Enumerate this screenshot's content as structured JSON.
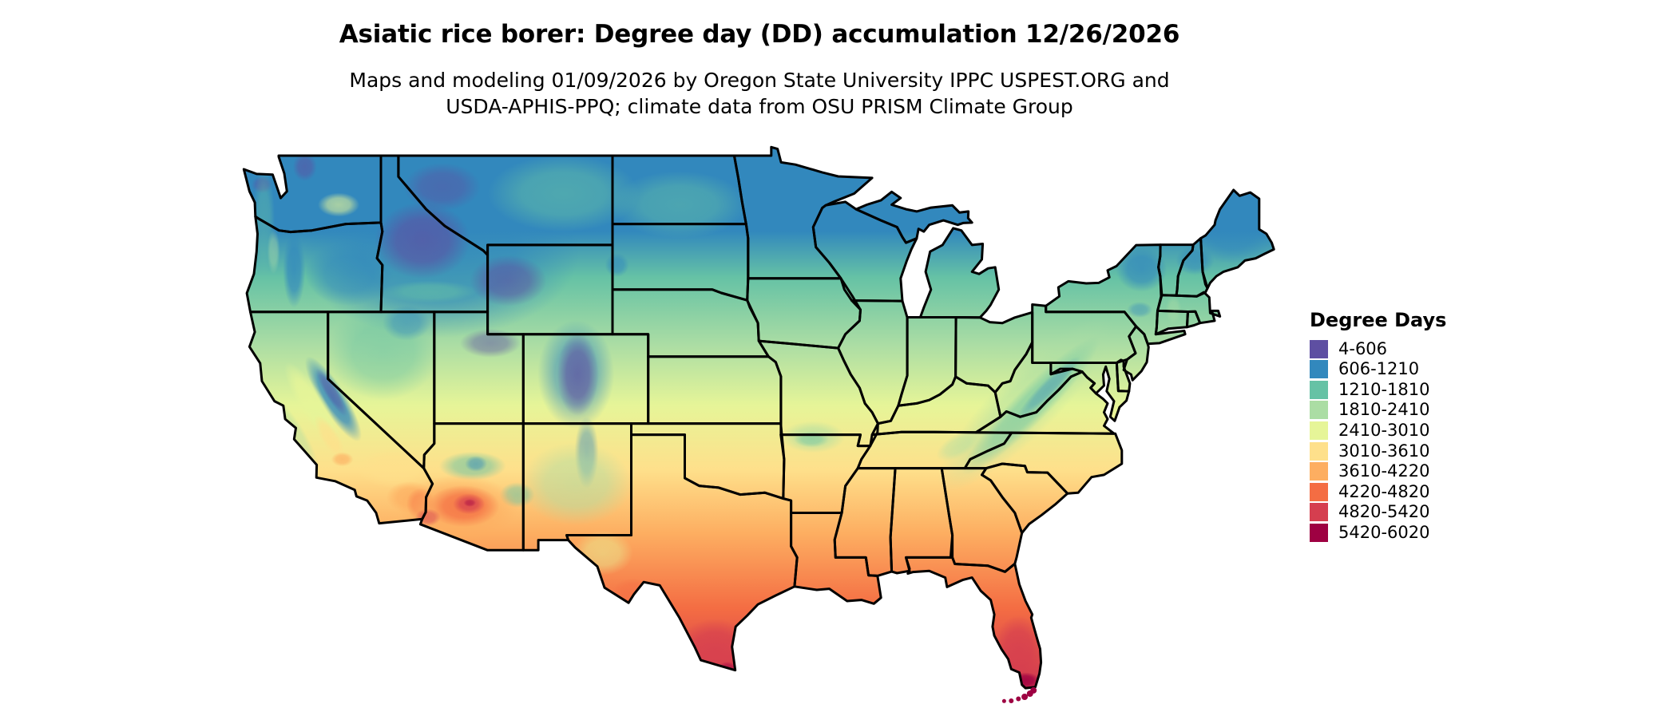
{
  "title": {
    "text": "Asiatic rice borer: Degree day (DD) accumulation 12/26/2026"
  },
  "subtitle": {
    "line1": "Maps and modeling 01/09/2026 by Oregon State University IPPC USPEST.ORG and",
    "line2": "USDA-APHIS-PPQ; climate data from OSU PRISM Climate Group"
  },
  "legend": {
    "title": "Degree Days",
    "items": [
      {
        "label": "4-606",
        "color": "#5e4fa2"
      },
      {
        "label": "606-1210",
        "color": "#3288bd"
      },
      {
        "label": "1210-1810",
        "color": "#66c2a5"
      },
      {
        "label": "1810-2410",
        "color": "#abdda4"
      },
      {
        "label": "2410-3010",
        "color": "#e6f598"
      },
      {
        "label": "3010-3610",
        "color": "#fee08b"
      },
      {
        "label": "3610-4220",
        "color": "#fdae61"
      },
      {
        "label": "4220-4820",
        "color": "#f46d43"
      },
      {
        "label": "4820-5420",
        "color": "#d53e4f"
      },
      {
        "label": "5420-6020",
        "color": "#9e0142"
      }
    ]
  },
  "map": {
    "kind": "degree-day raster map of contiguous United States",
    "state_border_color": "#000000",
    "water_background_color": "#ffffff"
  }
}
